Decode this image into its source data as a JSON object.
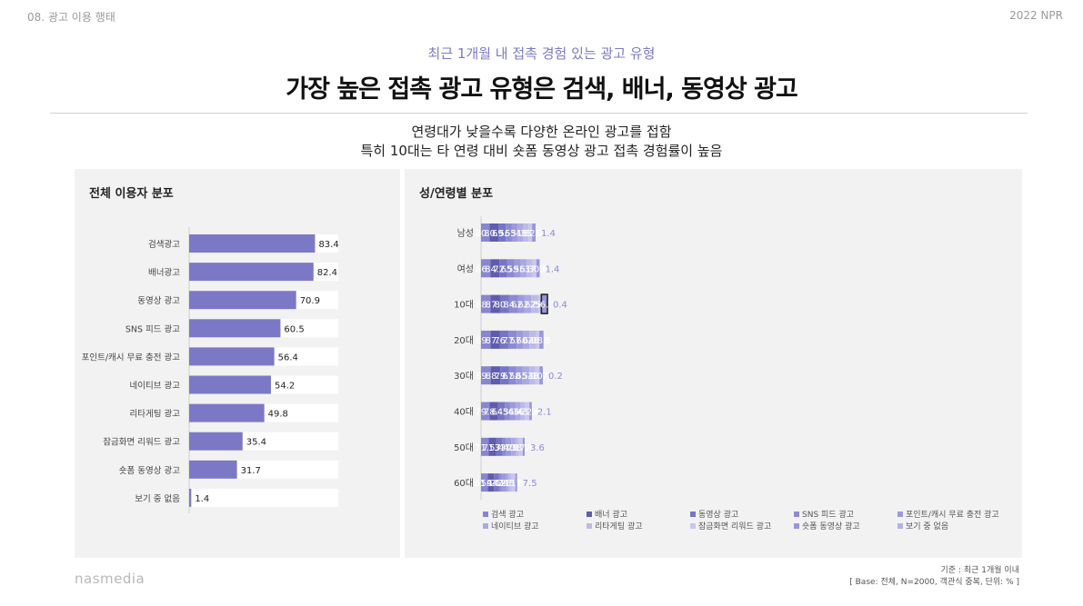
{
  "header": {
    "section": "08. 광고 이용 행태",
    "year": "2022 NPR",
    "subtitle": "최근 1개월 내 접촉 경험 있는 광고 유형",
    "title": "가장 높은 접촉 광고 유형은 검색, 배너, 동영상 광고",
    "desc1": "연령대가 낮을수록 다양한 온라인 광고를 접함",
    "desc2": "특히 10대는 타 연령 대비 숏폼 동영상 광고 접촉 경험률이 높음"
  },
  "footnote": {
    "line1": "기준 : 최근 1개월 이내",
    "line2": "[ Base: 전체, N=2000, 객관식 중복, 단위: % ]"
  },
  "brand": "nasmedia",
  "chart_data": [
    {
      "type": "bar",
      "orientation": "horizontal",
      "title": "전체 이용자 분포",
      "categories": [
        "검색광고",
        "배너광고",
        "동영상 광고",
        "SNS 피드 광고",
        "포인트/캐시 무료 충전 광고",
        "네이티브 광고",
        "리타게팅 광고",
        "잠금화면 리워드 광고",
        "숏폼 동영상 광고",
        "보기 중 없음"
      ],
      "values": [
        83.4,
        82.4,
        70.9,
        60.5,
        56.4,
        54.2,
        49.8,
        35.4,
        31.7,
        1.4
      ],
      "xlim": [
        0,
        100
      ],
      "grid": false,
      "color": "#7b79c6"
    },
    {
      "type": "bar",
      "orientation": "horizontal",
      "stacked": true,
      "title": "성/연령별 분포",
      "categories": [
        "남성",
        "여성",
        "10대",
        "20대",
        "30대",
        "40대",
        "50대",
        "60대"
      ],
      "highlight": {
        "category": "10대",
        "series": "숏폼 동영상 광고"
      },
      "legend_position": "bottom",
      "series": [
        {
          "name": "검색 광고",
          "color": "#8886d2",
          "values": [
            80.4,
            86.6,
            88.9,
            89.2,
            89.8,
            79.1,
            71.2,
            61.3
          ]
        },
        {
          "name": "배너 광고",
          "color": "#5f5cae",
          "values": [
            80.4,
            84.5,
            87.7,
            87.3,
            88.7,
            78.9,
            71.2,
            59.4
          ]
        },
        {
          "name": "동영상 광고",
          "color": "#7674c4",
          "values": [
            69.6,
            72.2,
            80.5,
            76.5,
            79.3,
            64.2,
            57.2,
            44.3
          ]
        },
        {
          "name": "SNS 피드 광고",
          "color": "#8c8ad4",
          "values": [
            56.1,
            65.2,
            84.7,
            77.8,
            67.8,
            43.5,
            33.3,
            25.5
          ]
        },
        {
          "name": "포인트/캐시 무료 충전 광고",
          "color": "#9c9adb",
          "values": [
            53.4,
            59.4,
            62.5,
            57.7,
            58.9,
            56.5,
            47.7,
            41.5
          ]
        },
        {
          "name": "네이티브 광고",
          "color": "#aba9e2",
          "values": [
            51.7,
            56.9,
            62.1,
            60.3,
            65.2,
            46.4,
            40.1,
            24.5
          ]
        },
        {
          "name": "리타게팅 광고",
          "color": "#bcbae9",
          "values": [
            48.5,
            51.1,
            67.8,
            64.1,
            54.3,
            36.8,
            28.4,
            25.5
          ]
        },
        {
          "name": "잠금화면 리워드 광고",
          "color": "#c9c7ee",
          "values": [
            33.4,
            37.6,
            25.7,
            28.3,
            38.7,
            43.1,
            38.7,
            35.8
          ]
        },
        {
          "name": "숏폼 동영상 광고",
          "color": "#9896d9",
          "values": [
            32.7,
            30.6,
            56.3,
            38.5,
            30.7,
            22.6,
            17.1,
            17.0
          ]
        },
        {
          "name": "보기 중 없음",
          "color": "#b3b1e4",
          "values": [
            1.4,
            1.4,
            0.4,
            null,
            0.2,
            2.1,
            3.6,
            7.5
          ]
        }
      ]
    }
  ]
}
